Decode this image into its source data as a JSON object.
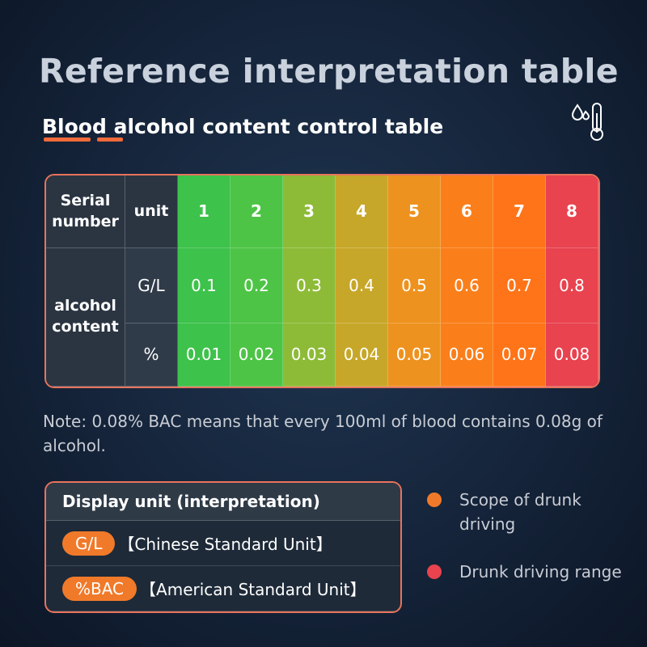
{
  "title": "Reference interpretation table",
  "subtitle": "Blood alcohol content control table",
  "table": {
    "header": [
      "Serial number",
      "unit",
      "1",
      "2",
      "3",
      "4",
      "5",
      "6",
      "7",
      "8"
    ],
    "row_label": "alcohol content",
    "rows": [
      [
        "G/L",
        "0.1",
        "0.2",
        "0.3",
        "0.4",
        "0.5",
        "0.6",
        "0.7",
        "0.8"
      ],
      [
        "%",
        "0.01",
        "0.02",
        "0.03",
        "0.04",
        "0.05",
        "0.06",
        "0.07",
        "0.08"
      ]
    ]
  },
  "note": "Note: 0.08% BAC means that every 100ml of blood contains 0.08g of alcohol.",
  "display_box": {
    "title": "Display unit (interpretation)",
    "items": [
      {
        "badge": "G/L",
        "text": "【Chinese Standard Unit】"
      },
      {
        "badge": "%BAC",
        "text": "【American Standard Unit】"
      }
    ]
  },
  "legend": [
    "Scope of drunk driving",
    "Drunk driving range"
  ]
}
